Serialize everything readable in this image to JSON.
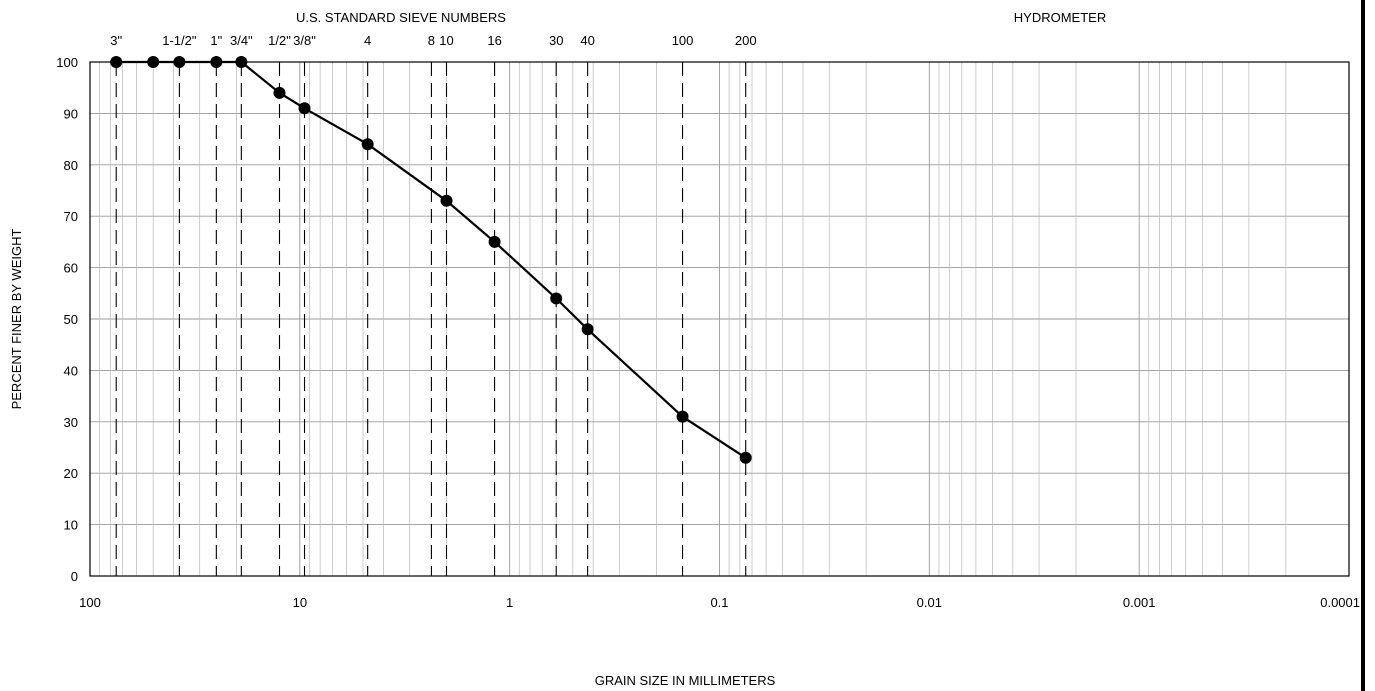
{
  "chart_data": {
    "type": "line",
    "title": "",
    "top_axis_title": "U.S. STANDARD SIEVE NUMBERS",
    "top_right_label": "HYDROMETER",
    "xlabel": "GRAIN SIZE IN MILLIMETERS",
    "ylabel": "PERCENT FINER BY WEIGHT",
    "x_scale": "log",
    "x_reversed": true,
    "xlim": [
      100,
      0.0001
    ],
    "ylim": [
      0,
      100
    ],
    "x_ticks": [
      {
        "value": 100,
        "label": "100"
      },
      {
        "value": 10,
        "label": "10"
      },
      {
        "value": 1,
        "label": "1"
      },
      {
        "value": 0.1,
        "label": "0.1"
      },
      {
        "value": 0.01,
        "label": "0.01"
      },
      {
        "value": 0.001,
        "label": "0.001"
      },
      {
        "value": 0.0001,
        "label": "0.0001"
      }
    ],
    "y_ticks": [
      0,
      10,
      20,
      30,
      40,
      50,
      60,
      70,
      80,
      90,
      100
    ],
    "sieves": [
      {
        "label": "3\"",
        "size_mm": 75
      },
      {
        "label": "1-1/2\"",
        "size_mm": 37.5
      },
      {
        "label": "1\"",
        "size_mm": 25
      },
      {
        "label": "3/4\"",
        "size_mm": 19
      },
      {
        "label": "1/2\"",
        "size_mm": 12.5
      },
      {
        "label": "3/8\"",
        "size_mm": 9.5
      },
      {
        "label": "4",
        "size_mm": 4.75
      },
      {
        "label": "8",
        "size_mm": 2.36
      },
      {
        "label": "10",
        "size_mm": 2.0
      },
      {
        "label": "16",
        "size_mm": 1.18
      },
      {
        "label": "30",
        "size_mm": 0.6
      },
      {
        "label": "40",
        "size_mm": 0.425
      },
      {
        "label": "100",
        "size_mm": 0.15
      },
      {
        "label": "200",
        "size_mm": 0.075
      }
    ],
    "series": [
      {
        "x": [
          75,
          50,
          37.5,
          25,
          19,
          12.5,
          9.5,
          4.75,
          2.0,
          1.18,
          0.6,
          0.425,
          0.15,
          0.075
        ],
        "y": [
          100,
          100,
          100,
          100,
          100,
          94,
          91,
          84,
          73,
          65,
          54,
          48,
          31,
          23
        ]
      }
    ],
    "grid": true
  }
}
